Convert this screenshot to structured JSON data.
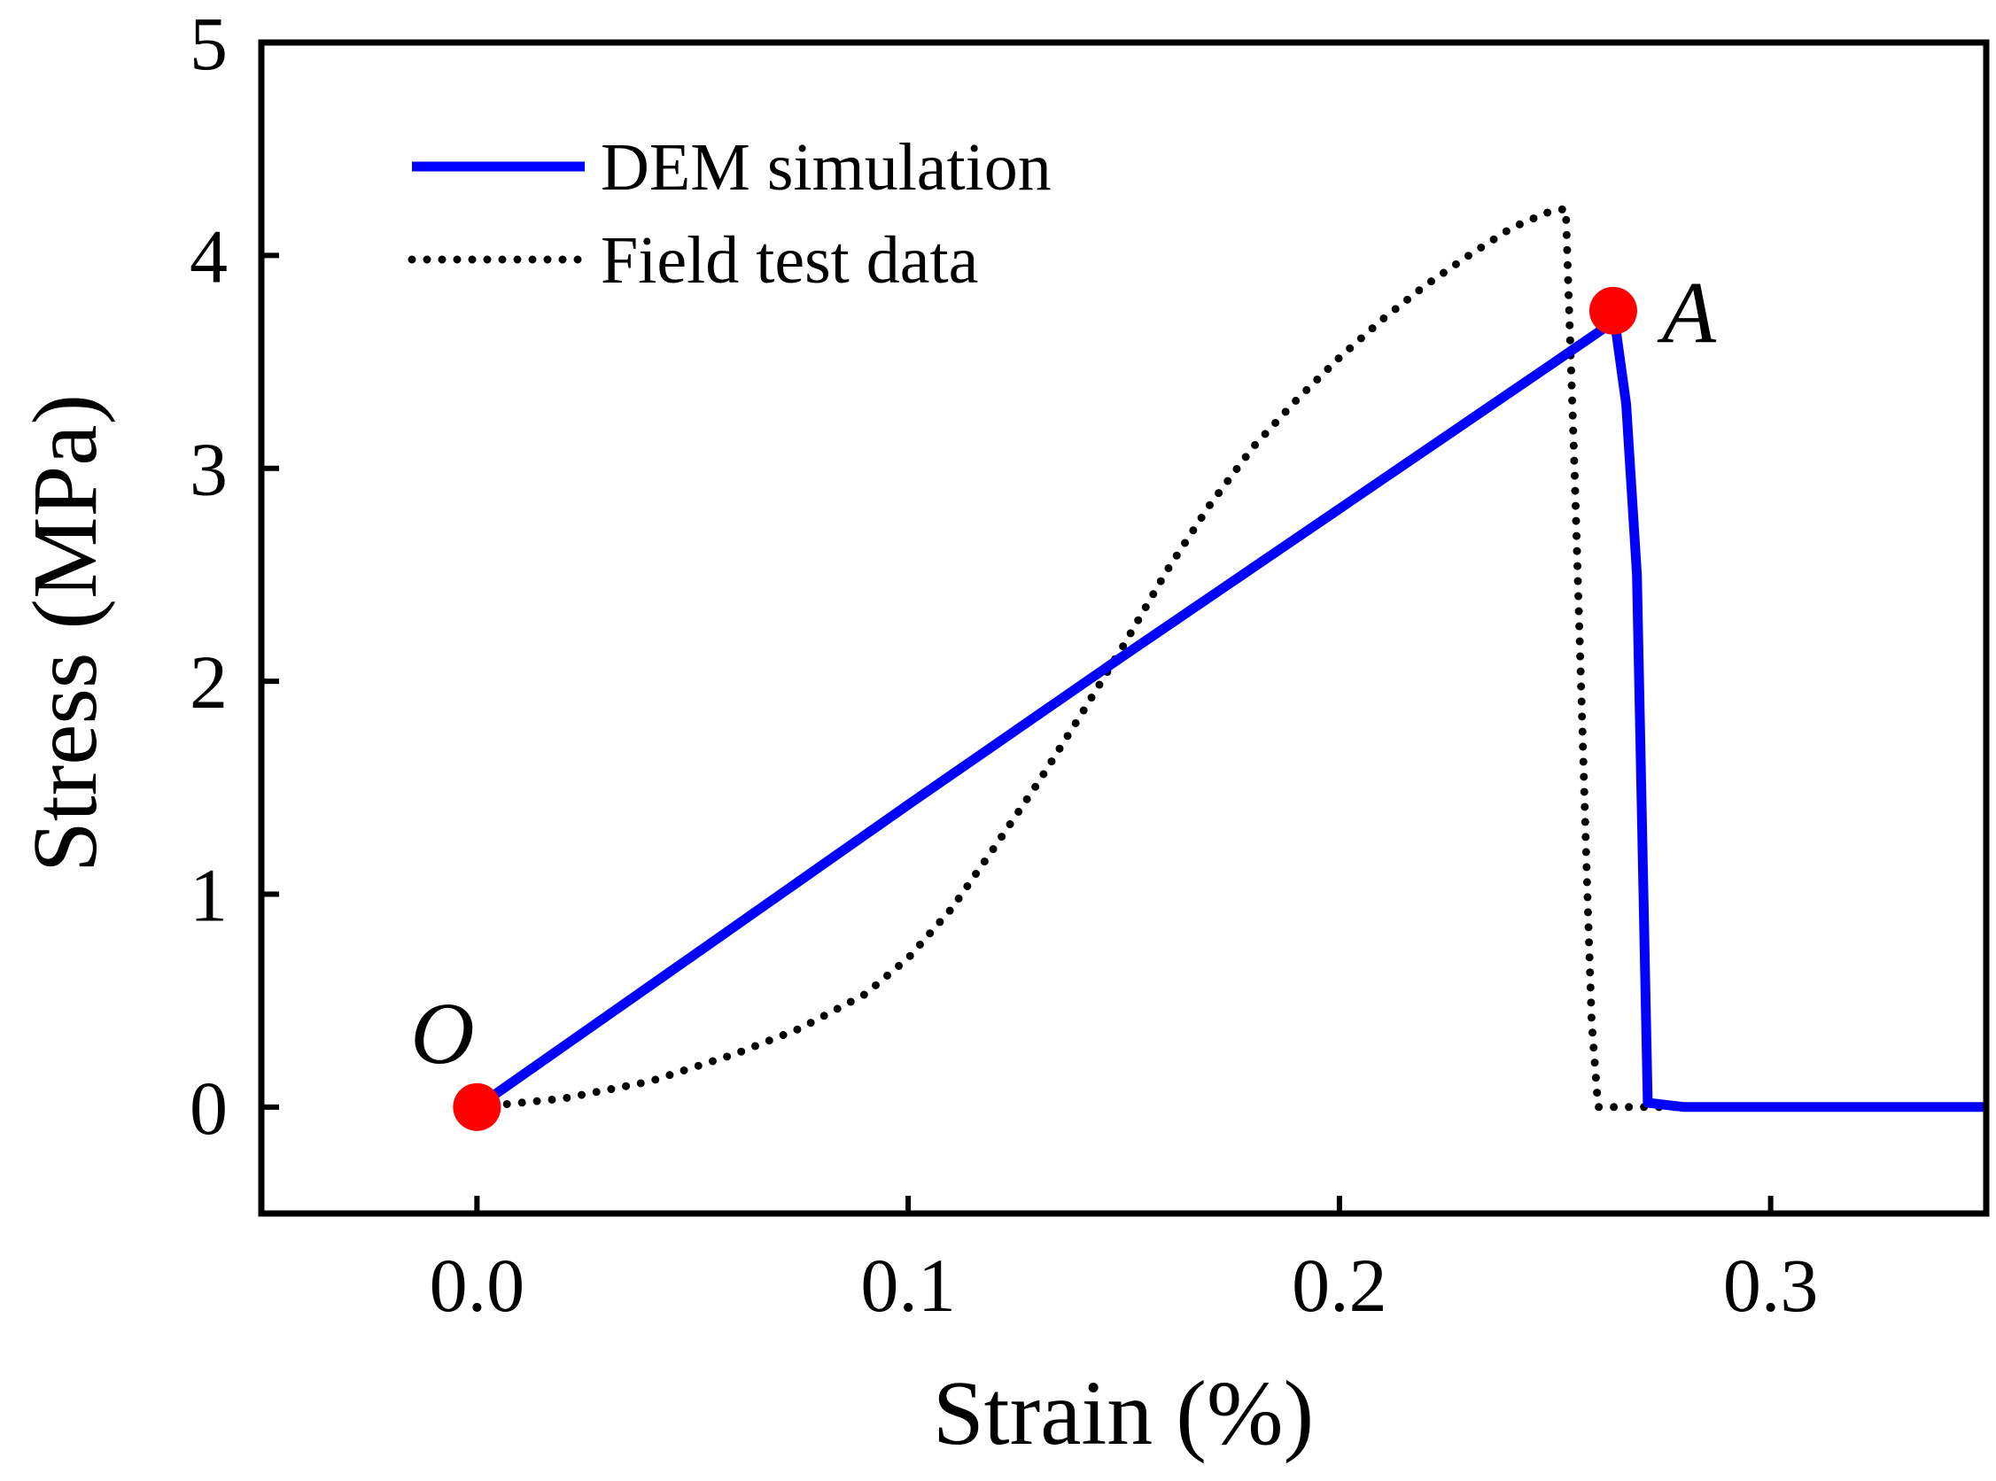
{
  "chart_data": {
    "type": "line",
    "title": "",
    "xlabel": "Strain (%)",
    "ylabel": "Stress (MPa)",
    "xlim": [
      -0.05,
      0.35
    ],
    "ylim": [
      -0.5,
      5
    ],
    "xticks": [
      0.0,
      0.1,
      0.2,
      0.3
    ],
    "xtick_labels": [
      "0.0",
      "0.1",
      "0.2",
      "0.3"
    ],
    "yticks": [
      0,
      1,
      2,
      3,
      4,
      5
    ],
    "ytick_labels": [
      "0",
      "1",
      "2",
      "3",
      "4",
      "5"
    ],
    "grid": false,
    "legend_position": "top-left",
    "series": [
      {
        "name": "DEM simulation",
        "style": "solid",
        "color": "#0000ff",
        "x": [
          0.0,
          0.05,
          0.1,
          0.15,
          0.2,
          0.25,
          0.2615,
          0.2635,
          0.2665,
          0.269,
          0.2715,
          0.28,
          0.3,
          0.35
        ],
        "y": [
          0.0,
          0.71,
          1.42,
          2.12,
          2.81,
          3.5,
          3.66,
          3.74,
          3.3,
          2.5,
          0.02,
          0.0,
          0.0,
          0.0
        ]
      },
      {
        "name": "Field test data",
        "style": "dotted",
        "color": "#000000",
        "x": [
          0.0,
          0.02,
          0.04,
          0.06,
          0.075,
          0.09,
          0.1,
          0.11,
          0.12,
          0.13,
          0.14,
          0.15,
          0.16,
          0.17,
          0.18,
          0.19,
          0.2,
          0.21,
          0.22,
          0.23,
          0.24,
          0.248,
          0.2525,
          0.253,
          0.2545,
          0.256,
          0.2575,
          0.2585,
          0.26,
          0.27,
          0.29,
          0.32
        ],
        "y": [
          0.0,
          0.04,
          0.12,
          0.25,
          0.37,
          0.53,
          0.7,
          0.93,
          1.22,
          1.52,
          1.84,
          2.17,
          2.52,
          2.83,
          3.1,
          3.32,
          3.52,
          3.7,
          3.86,
          4.0,
          4.13,
          4.2,
          4.22,
          3.9,
          3.0,
          2.0,
          1.0,
          0.4,
          0.0,
          0.0,
          0.0,
          0.0
        ]
      }
    ],
    "points": [
      {
        "label": "O",
        "x": 0.0,
        "y": 0.0,
        "color": "#ff0000"
      },
      {
        "label": "A",
        "x": 0.2635,
        "y": 3.74,
        "color": "#ff0000"
      }
    ]
  }
}
